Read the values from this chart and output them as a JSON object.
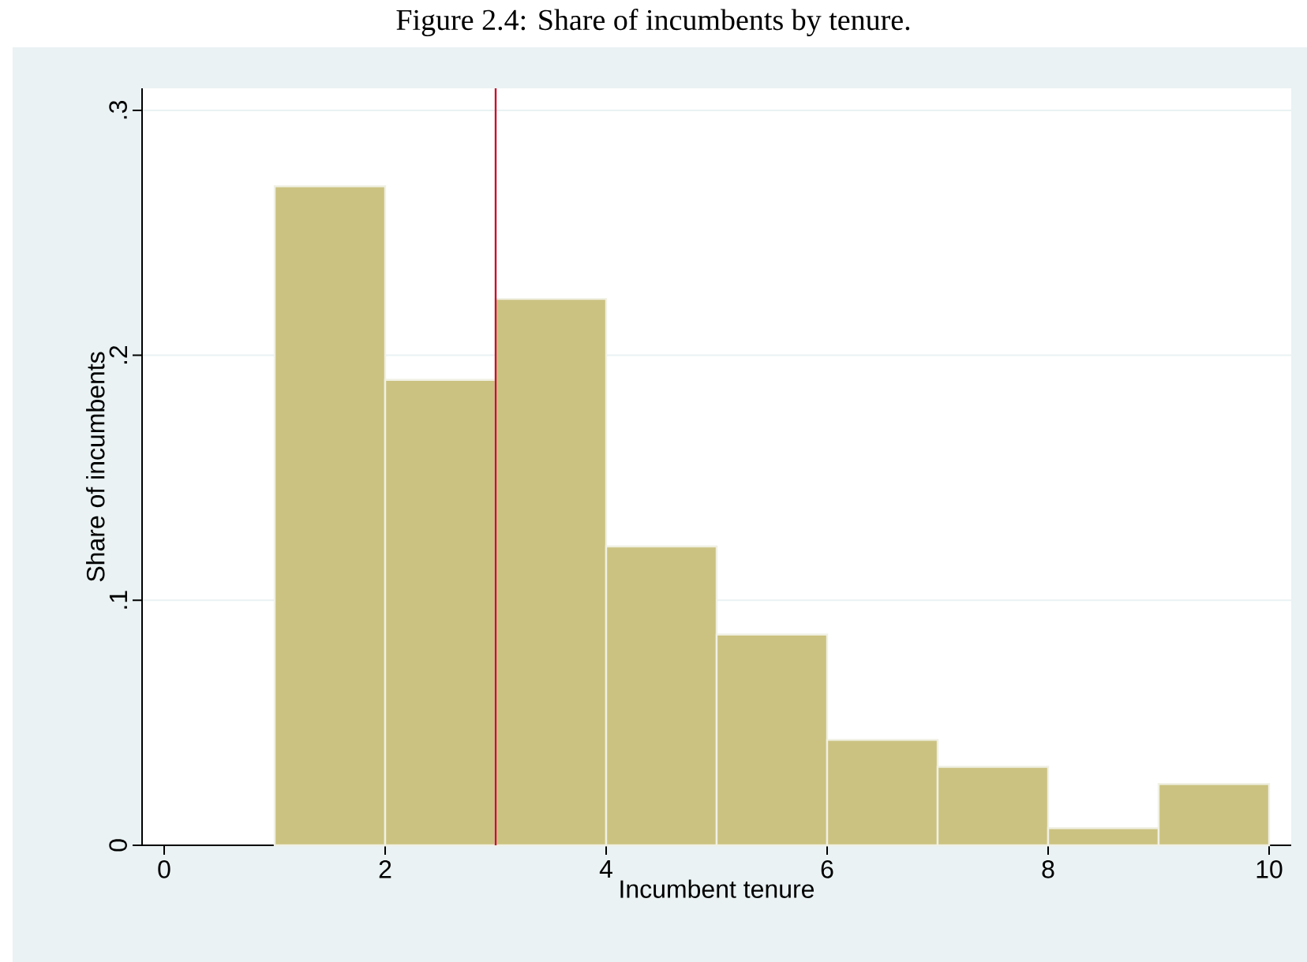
{
  "chart_data": {
    "type": "histogram",
    "title": "Figure 2.4: Share of incumbents by tenure.",
    "xlabel": "Incumbent tenure",
    "ylabel": "Share of incumbents",
    "bins": [
      1,
      2,
      3,
      4,
      5,
      6,
      7,
      8,
      9,
      10
    ],
    "values": [
      0.269,
      0.19,
      0.223,
      0.122,
      0.086,
      0.043,
      0.032,
      0.007,
      0.025
    ],
    "color": "#cbc281",
    "xlim": [
      -0.2,
      10.2
    ],
    "ylim": [
      0,
      0.3
    ],
    "xticks": [
      0,
      2,
      4,
      6,
      8,
      10
    ],
    "yticks": [
      0,
      {
        "value": 0.1,
        "label": ".1"
      },
      {
        "value": 0.2,
        "label": ".2"
      },
      {
        "value": 0.3,
        "label": ".3"
      }
    ],
    "ref_lines": [
      {
        "axis": "x",
        "value": 3,
        "color": "#c8102e"
      }
    ],
    "grid": "y"
  }
}
